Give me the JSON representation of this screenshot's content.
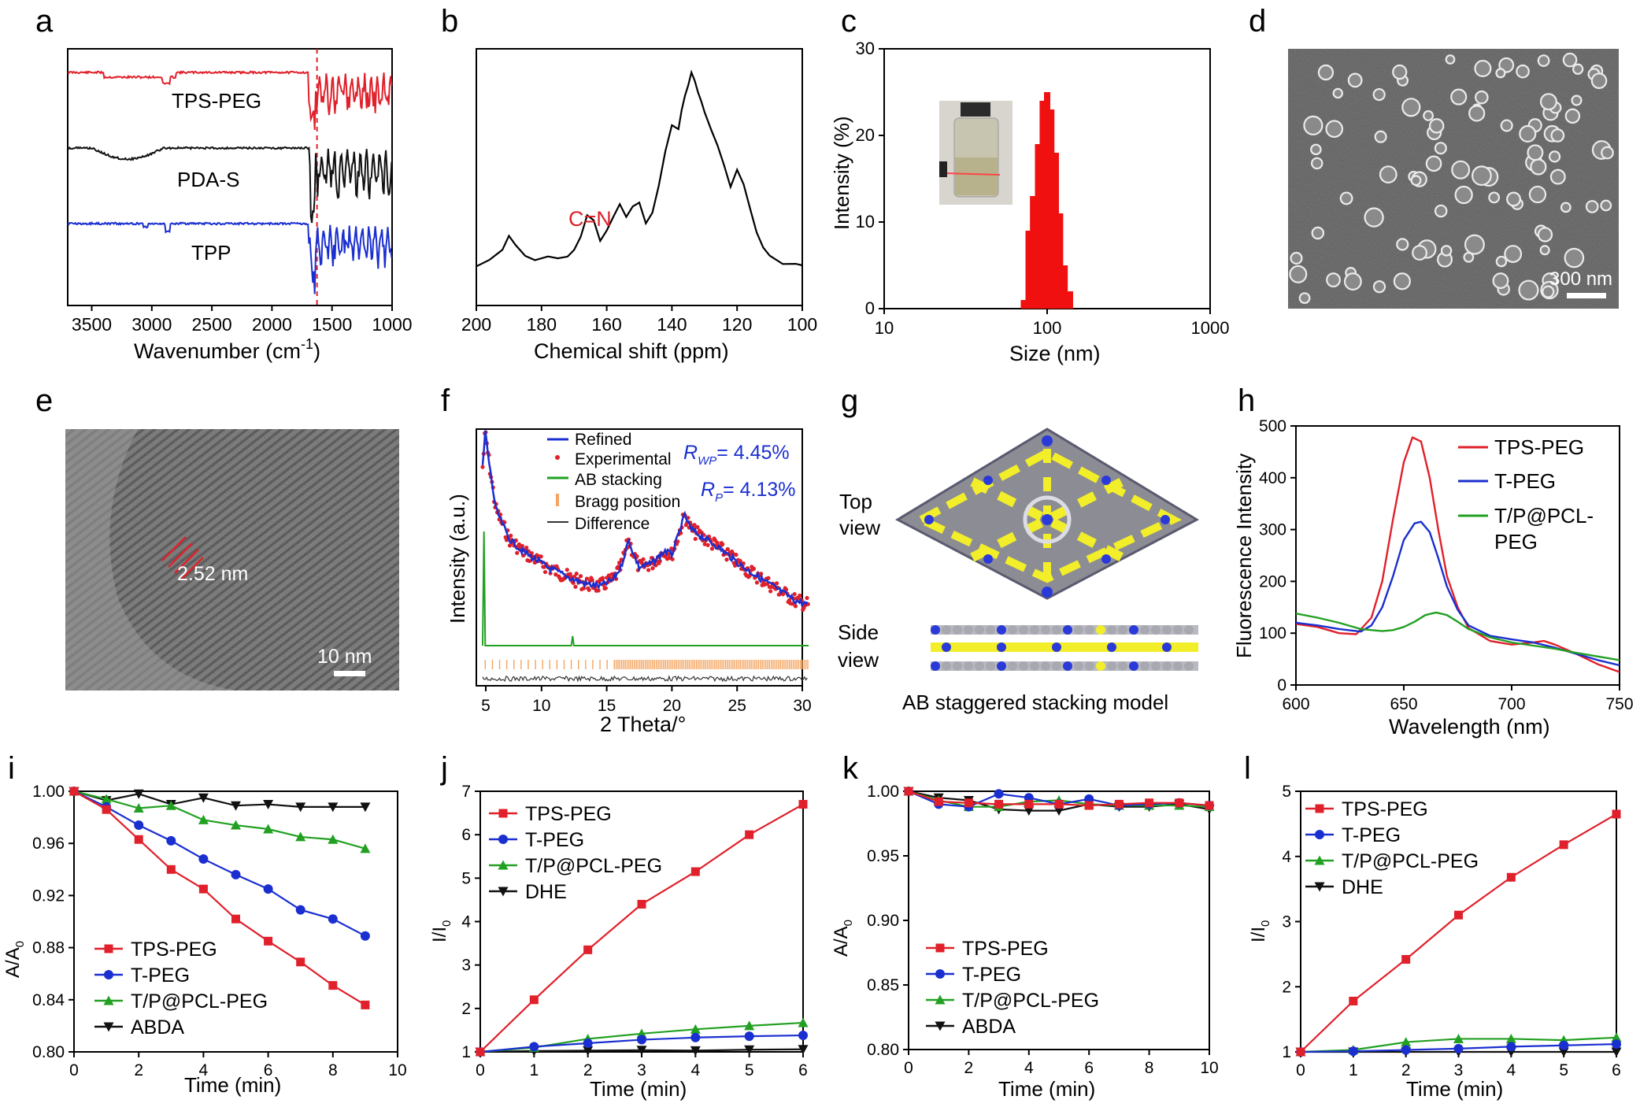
{
  "panels": {
    "a": {
      "letter": "a",
      "xlabel": "Wavenumber (cm",
      "xlabel_sup": "-1",
      "xlabel_end": ")",
      "xticks": [
        "3500",
        "3000",
        "2500",
        "2000",
        "1500",
        "1000"
      ],
      "traces": [
        {
          "name": "TPS-PEG",
          "color": "#e0202a"
        },
        {
          "name": "PDA-S",
          "color": "#111111"
        },
        {
          "name": "TPP",
          "color": "#1a2fd0"
        }
      ]
    },
    "b": {
      "letter": "b",
      "xlabel": "Chemical shift (ppm)",
      "xticks": [
        "200",
        "180",
        "160",
        "140",
        "120",
        "100"
      ],
      "annotation": "C=N",
      "annotation_color": "#e0202a"
    },
    "c": {
      "letter": "c",
      "xlabel": "Size (nm)",
      "ylabel": "Intensity (%)",
      "xticks": [
        "10",
        "100",
        "1000"
      ],
      "yticks": [
        "0",
        "10",
        "20",
        "30"
      ]
    },
    "d": {
      "letter": "d",
      "scale": "300 nm"
    },
    "e": {
      "letter": "e",
      "spacing": "2.52 nm",
      "scale": "10 nm"
    },
    "f": {
      "letter": "f",
      "xlabel": "2 Theta/°",
      "ylabel": "Intensity (a.u.)",
      "xticks": [
        "5",
        "10",
        "15",
        "20",
        "25",
        "30"
      ],
      "legend": [
        "Refined",
        "Experimental",
        "AB stacking",
        "Bragg position",
        "Difference"
      ],
      "rwp": "R",
      "rwp_sub": "WP",
      "rwp_val": "= 4.45%",
      "rp": "R",
      "rp_sub": "P",
      "rp_val": "= 4.13%"
    },
    "g": {
      "letter": "g",
      "top1": "Top",
      "top2": "view",
      "side1": "Side",
      "side2": "view",
      "caption": "AB staggered stacking model"
    },
    "h": {
      "letter": "h",
      "xlabel": "Wavelength (nm)",
      "ylabel": "Fluorescence Intensity",
      "xticks": [
        "600",
        "650",
        "700",
        "750"
      ],
      "yticks": [
        "0",
        "100",
        "200",
        "300",
        "400",
        "500"
      ],
      "legend": [
        "TPS-PEG",
        "T-PEG",
        "T/P@PCL-",
        "PEG"
      ]
    },
    "i": {
      "letter": "i",
      "xlabel": "Time (min)",
      "ylabel": "A/A",
      "ylabel_sub": "0",
      "xticks": [
        "0",
        "2",
        "4",
        "6",
        "8",
        "10"
      ],
      "yticks": [
        "0.80",
        "0.84",
        "0.88",
        "0.92",
        "0.96",
        "1.00"
      ],
      "legend": [
        "TPS-PEG",
        "T-PEG",
        "T/P@PCL-PEG",
        "ABDA"
      ]
    },
    "j": {
      "letter": "j",
      "xlabel": "Time (min)",
      "ylabel": "I/I",
      "ylabel_sub": "0",
      "xticks": [
        "0",
        "1",
        "2",
        "3",
        "4",
        "5",
        "6"
      ],
      "yticks": [
        "1",
        "2",
        "3",
        "4",
        "5",
        "6",
        "7"
      ],
      "legend": [
        "TPS-PEG",
        "T-PEG",
        "T/P@PCL-PEG",
        "DHE"
      ]
    },
    "k": {
      "letter": "k",
      "xlabel": "Time (min)",
      "ylabel": "A/A",
      "ylabel_sub": "0",
      "xticks": [
        "0",
        "2",
        "4",
        "6",
        "8",
        "10"
      ],
      "yticks": [
        "0.80",
        "0.85",
        "0.90",
        "0.95",
        "1.00"
      ],
      "legend": [
        "TPS-PEG",
        "T-PEG",
        "T/P@PCL-PEG",
        "ABDA"
      ]
    },
    "l": {
      "letter": "l",
      "xlabel": "Time (min)",
      "ylabel": "I/I",
      "ylabel_sub": "0",
      "xticks": [
        "0",
        "1",
        "2",
        "3",
        "4",
        "5",
        "6"
      ],
      "yticks": [
        "1",
        "2",
        "3",
        "4",
        "5"
      ],
      "legend": [
        "TPS-PEG",
        "T-PEG",
        "T/P@PCL-PEG",
        "DHE"
      ]
    }
  },
  "chart_data": [
    {
      "panel": "a",
      "type": "line",
      "xlabel": "Wavenumber (cm-1)",
      "xlim": [
        3700,
        1000
      ],
      "x_reversed": true,
      "marker_line_x": 1625,
      "series": [
        {
          "name": "TPS-PEG"
        },
        {
          "name": "PDA-S"
        },
        {
          "name": "TPP"
        }
      ]
    },
    {
      "panel": "b",
      "type": "line",
      "xlabel": "Chemical shift (ppm)",
      "xlim": [
        200,
        100
      ],
      "x_reversed": true,
      "series": [
        {
          "x": [
            200,
            196,
            192,
            190,
            188,
            185,
            182,
            178,
            175,
            172,
            170,
            168,
            166,
            164,
            162,
            160,
            158,
            156,
            154,
            152,
            150,
            148,
            146,
            144,
            142,
            140,
            138,
            137,
            136,
            135,
            134,
            133,
            132,
            131,
            130,
            128,
            126,
            124,
            122,
            120,
            118,
            116,
            114,
            112,
            110,
            106,
            102,
            100
          ],
          "y": [
            0.05,
            0.08,
            0.14,
            0.2,
            0.16,
            0.1,
            0.09,
            0.1,
            0.09,
            0.1,
            0.14,
            0.2,
            0.3,
            0.28,
            0.18,
            0.22,
            0.3,
            0.36,
            0.3,
            0.34,
            0.36,
            0.26,
            0.32,
            0.45,
            0.62,
            0.74,
            0.72,
            0.82,
            0.88,
            0.94,
            1.0,
            0.96,
            0.9,
            0.86,
            0.8,
            0.72,
            0.64,
            0.54,
            0.44,
            0.52,
            0.46,
            0.34,
            0.22,
            0.14,
            0.1,
            0.07,
            0.06,
            0.06
          ]
        }
      ]
    },
    {
      "panel": "c",
      "type": "bar",
      "xscale": "log",
      "xlim": [
        10,
        1000
      ],
      "ylim": [
        0,
        30
      ],
      "xlabel": "Size (nm)",
      "ylabel": "Intensity (%)",
      "x": [
        72,
        77,
        82,
        88,
        94,
        100,
        106,
        113,
        120,
        128,
        138
      ],
      "values": [
        1,
        9,
        13,
        19,
        24,
        25,
        23,
        18,
        11,
        5,
        2
      ]
    },
    {
      "panel": "f",
      "type": "line",
      "xlim": [
        5,
        30
      ],
      "xlabel": "2 Theta/°",
      "ylabel": "Intensity (a.u.)",
      "series": [
        {
          "name": "Refined",
          "x": [
            5,
            5.2,
            5.5,
            6,
            7,
            8,
            9,
            10,
            11,
            12,
            13,
            14,
            15,
            15.6,
            16.2,
            16.6,
            17,
            18,
            19,
            19.5,
            20,
            20.5,
            21,
            22,
            23,
            24,
            25,
            26,
            27,
            28,
            29,
            30
          ],
          "y": [
            0.78,
            0.95,
            0.8,
            0.58,
            0.44,
            0.38,
            0.34,
            0.3,
            0.27,
            0.24,
            0.22,
            0.21,
            0.24,
            0.3,
            0.43,
            0.36,
            0.3,
            0.32,
            0.38,
            0.36,
            0.45,
            0.55,
            0.48,
            0.44,
            0.4,
            0.35,
            0.3,
            0.26,
            0.22,
            0.18,
            0.14,
            0.12
          ]
        },
        {
          "name": "AB stacking",
          "peaks": [
            {
              "x": 5.1,
              "h": 0.55
            },
            {
              "x": 11.9,
              "h": 0.04
            }
          ]
        }
      ]
    },
    {
      "panel": "h",
      "type": "line",
      "xlim": [
        600,
        750
      ],
      "ylim": [
        0,
        500
      ],
      "xlabel": "Wavelength (nm)",
      "ylabel": "Fluorescence Intensity",
      "series": [
        {
          "name": "TPS-PEG",
          "x": [
            600,
            610,
            620,
            628,
            635,
            640,
            645,
            650,
            654,
            658,
            662,
            666,
            670,
            675,
            680,
            690,
            700,
            710,
            715,
            720,
            730,
            740,
            750
          ],
          "y": [
            118,
            112,
            100,
            98,
            130,
            200,
            320,
            430,
            478,
            470,
            400,
            300,
            210,
            150,
            110,
            85,
            78,
            82,
            85,
            78,
            60,
            40,
            25
          ]
        },
        {
          "name": "T-PEG",
          "x": [
            600,
            610,
            620,
            630,
            635,
            640,
            645,
            650,
            655,
            658,
            662,
            666,
            670,
            675,
            680,
            690,
            700,
            710,
            720,
            730,
            740,
            750
          ],
          "y": [
            120,
            115,
            108,
            103,
            115,
            150,
            210,
            280,
            312,
            315,
            295,
            245,
            190,
            145,
            115,
            95,
            88,
            82,
            72,
            60,
            48,
            38
          ]
        },
        {
          "name": "T/P@PCL-PEG",
          "x": [
            600,
            610,
            620,
            630,
            640,
            645,
            650,
            655,
            660,
            665,
            670,
            675,
            680,
            690,
            700,
            710,
            720,
            730,
            740,
            750
          ],
          "y": [
            138,
            130,
            120,
            108,
            104,
            106,
            112,
            122,
            135,
            140,
            135,
            122,
            108,
            92,
            82,
            76,
            70,
            62,
            55,
            48
          ]
        }
      ]
    },
    {
      "panel": "i",
      "type": "line",
      "xlim": [
        0,
        10
      ],
      "ylim": [
        0.8,
        1.0
      ],
      "xlabel": "Time (min)",
      "ylabel": "A/A0",
      "series": [
        {
          "name": "TPS-PEG",
          "x": [
            0,
            1,
            2,
            3,
            4,
            5,
            6,
            7,
            8,
            9
          ],
          "y": [
            1.0,
            0.986,
            0.963,
            0.94,
            0.925,
            0.902,
            0.885,
            0.869,
            0.851,
            0.836
          ]
        },
        {
          "name": "T-PEG",
          "x": [
            0,
            1,
            2,
            3,
            4,
            5,
            6,
            7,
            8,
            9
          ],
          "y": [
            1.0,
            0.988,
            0.974,
            0.962,
            0.948,
            0.936,
            0.925,
            0.909,
            0.902,
            0.889
          ]
        },
        {
          "name": "T/P@PCL-PEG",
          "x": [
            0,
            1,
            2,
            3,
            4,
            5,
            6,
            7,
            8,
            9
          ],
          "y": [
            1.0,
            0.994,
            0.987,
            0.989,
            0.978,
            0.974,
            0.971,
            0.965,
            0.963,
            0.956
          ]
        },
        {
          "name": "ABDA",
          "x": [
            0,
            1,
            2,
            3,
            4,
            5,
            6,
            7,
            8,
            9
          ],
          "y": [
            1.0,
            0.993,
            0.998,
            0.99,
            0.995,
            0.989,
            0.99,
            0.988,
            0.988,
            0.988
          ]
        }
      ]
    },
    {
      "panel": "j",
      "type": "line",
      "xlim": [
        0,
        6
      ],
      "ylim": [
        1,
        7
      ],
      "xlabel": "Time (min)",
      "ylabel": "I/I0",
      "series": [
        {
          "name": "TPS-PEG",
          "x": [
            0,
            1,
            2,
            3,
            4,
            5,
            6
          ],
          "y": [
            1,
            2.2,
            3.35,
            4.4,
            5.15,
            6.0,
            6.7
          ]
        },
        {
          "name": "T-PEG",
          "x": [
            0,
            1,
            2,
            3,
            4,
            5,
            6
          ],
          "y": [
            1,
            1.12,
            1.2,
            1.28,
            1.33,
            1.36,
            1.38
          ]
        },
        {
          "name": "T/P@PCL-PEG",
          "x": [
            0,
            1,
            2,
            3,
            4,
            5,
            6
          ],
          "y": [
            1,
            1.1,
            1.3,
            1.42,
            1.52,
            1.6,
            1.67
          ]
        },
        {
          "name": "DHE",
          "x": [
            0,
            1,
            2,
            3,
            4,
            5,
            6
          ],
          "y": [
            1,
            1.02,
            1.03,
            1.04,
            1.03,
            1.05,
            1.06
          ]
        }
      ]
    },
    {
      "panel": "k",
      "type": "line",
      "xlim": [
        0,
        10
      ],
      "ylim": [
        0.8,
        1.0
      ],
      "xlabel": "Time (min)",
      "ylabel": "A/A0",
      "series": [
        {
          "name": "TPS-PEG",
          "x": [
            0,
            1,
            2,
            3,
            4,
            5,
            6,
            7,
            8,
            9,
            10
          ],
          "y": [
            1.0,
            0.992,
            0.991,
            0.99,
            0.99,
            0.99,
            0.989,
            0.99,
            0.991,
            0.991,
            0.989
          ]
        },
        {
          "name": "T-PEG",
          "x": [
            0,
            1,
            2,
            3,
            4,
            5,
            6,
            7,
            8,
            9,
            10
          ],
          "y": [
            1.0,
            0.99,
            0.988,
            0.998,
            0.995,
            0.99,
            0.994,
            0.989,
            0.99,
            0.991,
            0.989
          ]
        },
        {
          "name": "T/P@PCL-PEG",
          "x": [
            0,
            1,
            2,
            3,
            4,
            5,
            6,
            7,
            8,
            9,
            10
          ],
          "y": [
            1.0,
            0.993,
            0.988,
            0.988,
            0.992,
            0.993,
            0.99,
            0.989,
            0.989,
            0.989,
            0.988
          ]
        },
        {
          "name": "ABDA",
          "x": [
            0,
            1,
            2,
            3,
            4,
            5,
            6,
            7,
            8,
            9,
            10
          ],
          "y": [
            1.0,
            0.995,
            0.993,
            0.986,
            0.985,
            0.985,
            0.99,
            0.988,
            0.988,
            0.99,
            0.986
          ]
        }
      ]
    },
    {
      "panel": "l",
      "type": "line",
      "xlim": [
        0,
        6
      ],
      "ylim": [
        1,
        5
      ],
      "xlabel": "Time (min)",
      "ylabel": "I/I0",
      "series": [
        {
          "name": "TPS-PEG",
          "x": [
            0,
            1,
            2,
            3,
            4,
            5,
            6
          ],
          "y": [
            1,
            1.78,
            2.42,
            3.1,
            3.68,
            4.18,
            4.65
          ]
        },
        {
          "name": "T-PEG",
          "x": [
            0,
            1,
            2,
            3,
            4,
            5,
            6
          ],
          "y": [
            1,
            1.01,
            1.03,
            1.05,
            1.08,
            1.1,
            1.12
          ]
        },
        {
          "name": "T/P@PCL-PEG",
          "x": [
            0,
            1,
            2,
            3,
            4,
            5,
            6
          ],
          "y": [
            1,
            1.03,
            1.15,
            1.2,
            1.2,
            1.18,
            1.22
          ]
        },
        {
          "name": "DHE",
          "x": [
            0,
            1,
            2,
            3,
            4,
            5,
            6
          ],
          "y": [
            1,
            1.0,
            1.0,
            1.0,
            1.0,
            1.0,
            1.0
          ]
        }
      ]
    }
  ]
}
